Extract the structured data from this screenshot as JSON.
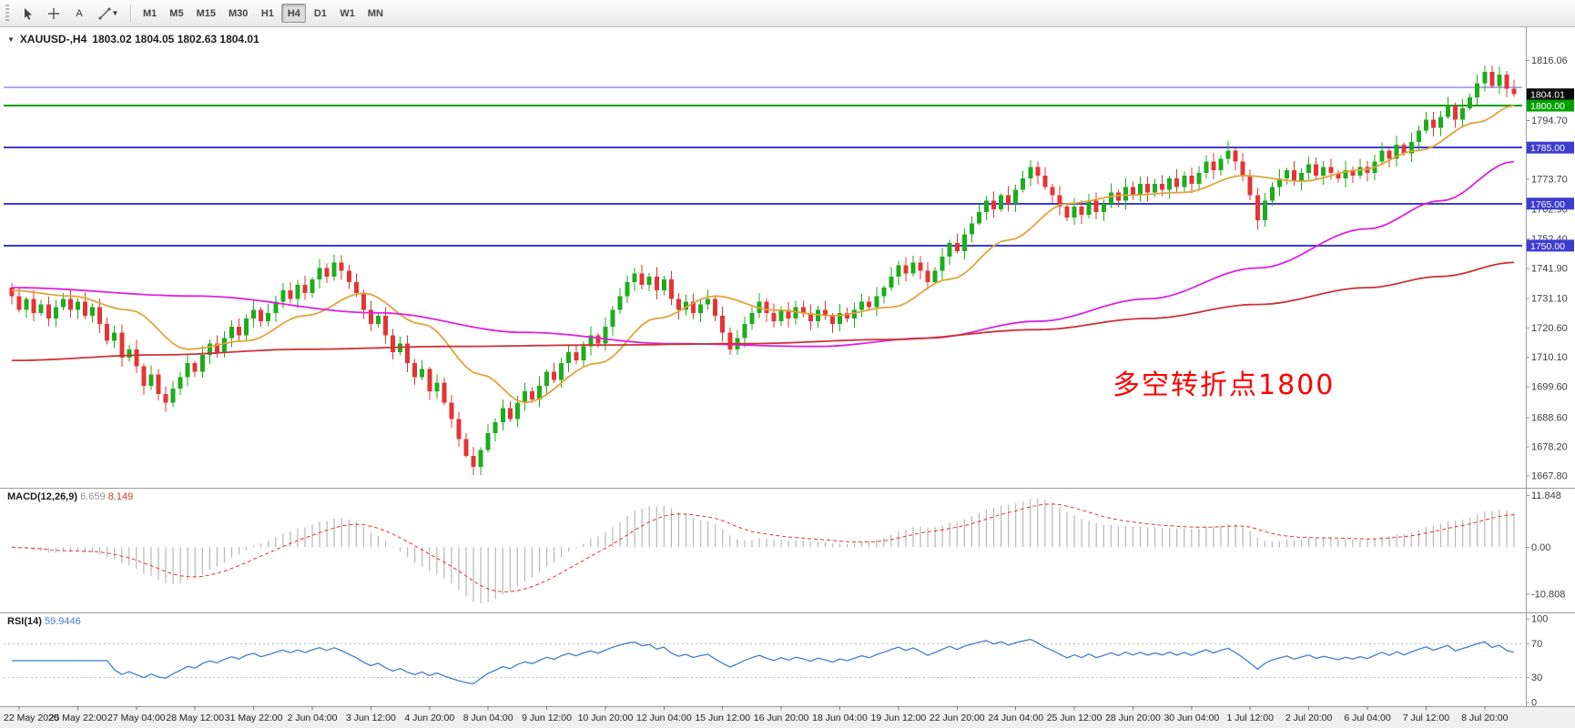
{
  "toolbar": {
    "text_tool_label": "A",
    "timeframes": [
      "M1",
      "M5",
      "M15",
      "M30",
      "H1",
      "H4",
      "D1",
      "W1",
      "MN"
    ],
    "active_timeframe": "H4"
  },
  "chart": {
    "title_symbol": "XAUUSD-,H4",
    "title_ohlc": "1803.02 1804.05 1802.63 1804.01",
    "annotation_text": "多空转折点1800",
    "annotation_color": "#ff0000"
  },
  "macd": {
    "name": "MACD(12,26,9)",
    "main_value": "6.659",
    "signal_value": "8.149"
  },
  "rsi": {
    "name": "RSI(14)",
    "value": "59.9446"
  },
  "chart_data": {
    "type": "candlestick",
    "symbol": "XAUUSD",
    "timeframe": "H4",
    "y_range": [
      1665.5,
      1826
    ],
    "y_axis_labels": [
      "1816.06",
      "1794.70",
      "1773.70",
      "1762.90",
      "1752.40",
      "1741.90",
      "1731.10",
      "1720.60",
      "1710.10",
      "1699.60",
      "1688.60",
      "1678.20",
      "1667.80"
    ],
    "price_badge": {
      "text": "1804.01",
      "bg": "#0a0a0a",
      "fg": "#ffffff"
    },
    "levels": [
      {
        "price": 1806.5,
        "color": "#5a5ad0",
        "width": 1,
        "badge": false,
        "label": ""
      },
      {
        "price": 1800.0,
        "color": "#00a000",
        "width": 2,
        "badge": true,
        "label": "1800.00",
        "badge_bg": "#00a000"
      },
      {
        "price": 1785.0,
        "color": "#3c3cd2",
        "width": 2,
        "badge": true,
        "label": "1785.00",
        "badge_bg": "#3c3cd2"
      },
      {
        "price": 1765.0,
        "color": "#3c3cd2",
        "width": 2,
        "badge": true,
        "label": "1765.00",
        "badge_bg": "#3c3cd2"
      },
      {
        "price": 1750.0,
        "color": "#3c3cd2",
        "width": 2,
        "badge": true,
        "label": "1750.00",
        "badge_bg": "#3c3cd2"
      }
    ],
    "candle_colors": {
      "up": "#1cad1c",
      "down": "#e43434"
    },
    "first_open": 1735,
    "closes": [
      1732,
      1727,
      1731,
      1726,
      1729,
      1724,
      1728,
      1731,
      1727,
      1730,
      1725,
      1728,
      1722,
      1716,
      1719,
      1710,
      1713,
      1707,
      1700,
      1704,
      1697,
      1694,
      1699,
      1703,
      1708,
      1705,
      1711,
      1715,
      1712,
      1717,
      1721,
      1718,
      1724,
      1727,
      1723,
      1726,
      1730,
      1734,
      1731,
      1736,
      1733,
      1738,
      1742,
      1739,
      1744,
      1741,
      1737,
      1733,
      1727,
      1722,
      1725,
      1718,
      1712,
      1715,
      1708,
      1703,
      1706,
      1698,
      1701,
      1694,
      1688,
      1681,
      1675,
      1671,
      1677,
      1683,
      1687,
      1692,
      1688,
      1694,
      1698,
      1695,
      1700,
      1705,
      1702,
      1708,
      1712,
      1709,
      1714,
      1718,
      1715,
      1721,
      1727,
      1732,
      1737,
      1740,
      1736,
      1739,
      1734,
      1738,
      1731,
      1727,
      1730,
      1726,
      1729,
      1731,
      1725,
      1719,
      1713,
      1717,
      1722,
      1726,
      1730,
      1726,
      1723,
      1727,
      1724,
      1728,
      1726,
      1723,
      1727,
      1725,
      1722,
      1726,
      1724,
      1727,
      1730,
      1728,
      1732,
      1735,
      1739,
      1743,
      1740,
      1744,
      1741,
      1737,
      1741,
      1746,
      1751,
      1748,
      1754,
      1758,
      1762,
      1766,
      1763,
      1768,
      1765,
      1770,
      1774,
      1778,
      1775,
      1771,
      1768,
      1764,
      1760,
      1764,
      1761,
      1766,
      1762,
      1765,
      1769,
      1766,
      1771,
      1768,
      1772,
      1769,
      1772,
      1770,
      1774,
      1771,
      1775,
      1772,
      1776,
      1780,
      1777,
      1781,
      1784,
      1780,
      1775,
      1768,
      1759,
      1766,
      1771,
      1774,
      1777,
      1773,
      1776,
      1779,
      1775,
      1778,
      1776,
      1774,
      1777,
      1775,
      1778,
      1776,
      1780,
      1784,
      1781,
      1786,
      1783,
      1787,
      1791,
      1795,
      1792,
      1796,
      1800,
      1795,
      1799,
      1803,
      1808,
      1812,
      1807,
      1811,
      1806,
      1804
    ],
    "overlays": [
      {
        "name": "ma-fast",
        "color": "#dfa43c",
        "anchors": [
          [
            0,
            1734
          ],
          [
            8,
            1732
          ],
          [
            16,
            1727
          ],
          [
            24,
            1713
          ],
          [
            32,
            1716
          ],
          [
            40,
            1725
          ],
          [
            48,
            1733
          ],
          [
            56,
            1722
          ],
          [
            64,
            1704
          ],
          [
            70,
            1694
          ],
          [
            80,
            1708
          ],
          [
            88,
            1724
          ],
          [
            96,
            1732
          ],
          [
            104,
            1727
          ],
          [
            112,
            1725
          ],
          [
            120,
            1728
          ],
          [
            128,
            1738
          ],
          [
            136,
            1752
          ],
          [
            144,
            1765
          ],
          [
            152,
            1768
          ],
          [
            160,
            1769
          ],
          [
            168,
            1775
          ],
          [
            176,
            1773
          ],
          [
            184,
            1777
          ],
          [
            192,
            1784
          ],
          [
            200,
            1794
          ],
          [
            205,
            1800
          ]
        ]
      },
      {
        "name": "ma-mid",
        "color": "#dd22dd",
        "anchors": [
          [
            0,
            1735
          ],
          [
            25,
            1732
          ],
          [
            50,
            1726
          ],
          [
            70,
            1719
          ],
          [
            90,
            1715
          ],
          [
            110,
            1714
          ],
          [
            125,
            1717
          ],
          [
            140,
            1723
          ],
          [
            155,
            1731
          ],
          [
            170,
            1742
          ],
          [
            185,
            1756
          ],
          [
            195,
            1766
          ],
          [
            205,
            1780
          ]
        ]
      },
      {
        "name": "ma-slow",
        "color": "#cc3333",
        "anchors": [
          [
            0,
            1709
          ],
          [
            20,
            1711
          ],
          [
            40,
            1713
          ],
          [
            60,
            1714
          ],
          [
            80,
            1714.5
          ],
          [
            100,
            1715
          ],
          [
            120,
            1716.5
          ],
          [
            140,
            1720
          ],
          [
            155,
            1724
          ],
          [
            170,
            1729
          ],
          [
            185,
            1735
          ],
          [
            195,
            1739
          ],
          [
            205,
            1744
          ]
        ]
      }
    ],
    "x_labels": [
      "22 May 2020",
      "25 May 22:00",
      "27 May 04:00",
      "28 May 12:00",
      "31 May 22:00",
      "2 Jun 04:00",
      "3 Jun 12:00",
      "4 Jun 20:00",
      "8 Jun 04:00",
      "9 Jun 12:00",
      "10 Jun 20:00",
      "12 Jun 04:00",
      "15 Jun 12:00",
      "16 Jun 20:00",
      "18 Jun 04:00",
      "19 Jun 12:00",
      "22 Jun 20:00",
      "24 Jun 04:00",
      "25 Jun 12:00",
      "28 Jun 20:00",
      "30 Jun 04:00",
      "1 Jul 12:00",
      "2 Jul 20:00",
      "6 Jul 04:00",
      "7 Jul 12:00",
      "8 Jul 20:00"
    ],
    "x_label_first_index": 1,
    "x_label_step": 8,
    "macd_panel": {
      "axis_labels": [
        {
          "text": "11.848",
          "value": 11.848
        },
        {
          "text": "0.00",
          "value": 0
        },
        {
          "text": "-10.808",
          "value": -10.808
        }
      ],
      "histogram_color": "#b6b6b6",
      "signal_color": "#e03434",
      "params": [
        12,
        26,
        9
      ]
    },
    "rsi_panel": {
      "axis_labels": [
        {
          "text": "100",
          "value": 100
        },
        {
          "text": "70",
          "value": 70
        },
        {
          "text": "30",
          "value": 30
        },
        {
          "text": "0",
          "value": 0
        }
      ],
      "levels": [
        30,
        70
      ],
      "line_color": "#3f7fca",
      "period": 14
    }
  }
}
